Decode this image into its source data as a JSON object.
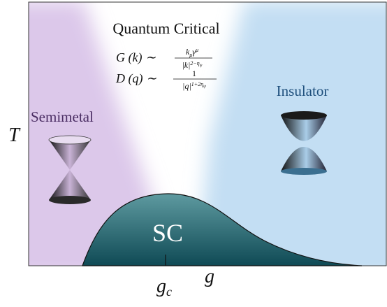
{
  "title": "Quantum Critical",
  "formulas": [
    {
      "lhs": "G (k) ∼",
      "num": [
        "k",
        "μ",
        "γ",
        "μ"
      ],
      "den": [
        "|k|",
        "2−η",
        "ψ"
      ]
    },
    {
      "lhs": "D (q) ∼",
      "num": [
        "1"
      ],
      "den": [
        "|q|",
        "1+2η",
        "ψ"
      ]
    }
  ],
  "phases": {
    "left": "Semimetal",
    "right": "Insulator",
    "dome": "SC"
  },
  "axes": {
    "y": "T",
    "x": "g",
    "critical": [
      "g",
      "c"
    ]
  }
}
